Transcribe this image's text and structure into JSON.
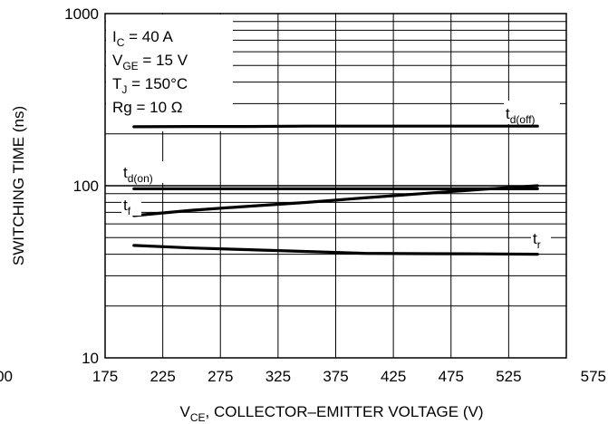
{
  "chart_data": {
    "type": "line",
    "title": "",
    "xlabel": {
      "prefix": "V",
      "sub": "CE",
      "rest": ", COLLECTOR–EMITTER VOLTAGE (V)"
    },
    "ylabel": "SWITCHING TIME (ns)",
    "xlim": [
      175,
      575
    ],
    "ylim": [
      10,
      1000
    ],
    "y_scale": "log",
    "grid": true,
    "x_ticks": [
      "175",
      "225",
      "275",
      "325",
      "375",
      "425",
      "475",
      "525",
      "575"
    ],
    "extra_tick_left": "00",
    "y_ticks": [
      {
        "label": "1000",
        "value": 1000
      },
      {
        "label": "100",
        "value": 100
      },
      {
        "label": "10",
        "value": 10
      }
    ],
    "conditions": [
      {
        "main": "I",
        "sub": "C",
        "rest": " = 40 A"
      },
      {
        "main": "V",
        "sub": "GE",
        "rest": " = 15 V"
      },
      {
        "main": "T",
        "sub": "J",
        "rest": " = 150°C"
      },
      {
        "main": "Rg",
        "sub": "",
        "rest": " = 10 Ω"
      }
    ],
    "series": [
      {
        "name": "t_d(off)",
        "label_main": "t",
        "label_sub": "d(off)",
        "x": [
          200,
          250,
          300,
          350,
          400,
          450,
          500,
          550
        ],
        "y": [
          220,
          221,
          221,
          222,
          222,
          222,
          222,
          222
        ]
      },
      {
        "name": "t_d(on)",
        "label_main": "t",
        "label_sub": "d(on)",
        "x": [
          200,
          250,
          300,
          350,
          400,
          450,
          500,
          550
        ],
        "y": [
          96,
          96,
          96,
          96,
          96,
          96,
          96,
          96
        ]
      },
      {
        "name": "t_f",
        "label_main": "t",
        "label_sub": "f",
        "x": [
          200,
          250,
          300,
          350,
          400,
          450,
          500,
          550
        ],
        "y": [
          67,
          72,
          76,
          80,
          85,
          90,
          95,
          100
        ]
      },
      {
        "name": "t_r",
        "label_main": "t",
        "label_sub": "r",
        "x": [
          200,
          250,
          300,
          350,
          400,
          450,
          500,
          550
        ],
        "y": [
          45,
          43.5,
          42.5,
          41.5,
          40.5,
          40.3,
          40.2,
          40
        ]
      }
    ]
  }
}
